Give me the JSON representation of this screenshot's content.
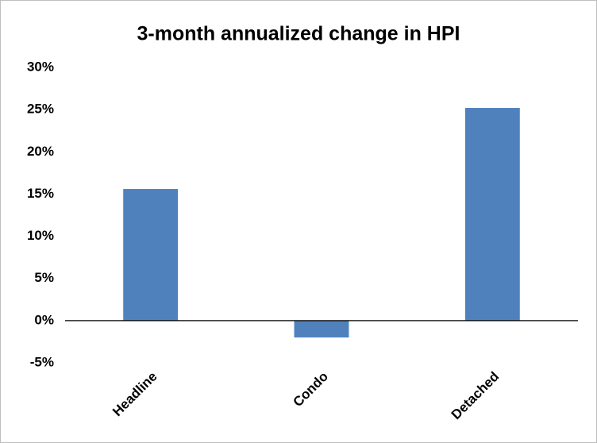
{
  "chart_data": {
    "type": "bar",
    "title": "3-month annualized change in HPI",
    "categories": [
      "Headline",
      "Condo",
      "Detached"
    ],
    "values": [
      15.6,
      -2.0,
      25.2
    ],
    "color": "#4f81bd",
    "ylim": [
      -5,
      30
    ],
    "yticks": [
      {
        "value": -5,
        "label": "-5%"
      },
      {
        "value": 0,
        "label": "0%"
      },
      {
        "value": 5,
        "label": "5%"
      },
      {
        "value": 10,
        "label": "10%"
      },
      {
        "value": 15,
        "label": "15%"
      },
      {
        "value": 20,
        "label": "20%"
      },
      {
        "value": 25,
        "label": "25%"
      },
      {
        "value": 30,
        "label": "30%"
      }
    ],
    "grid": false
  }
}
